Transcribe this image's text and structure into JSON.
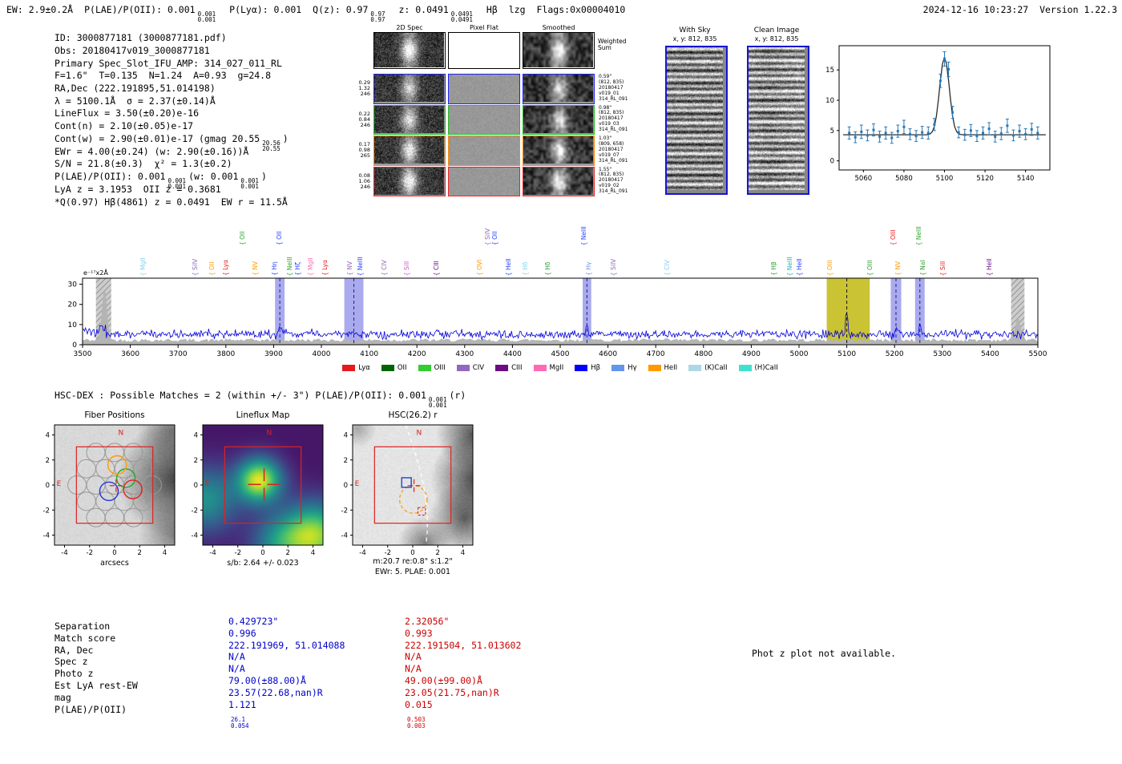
{
  "header": {
    "ew": "EW: 2.9±0.2Å",
    "plae_label": "P(LAE)/P(OII): 0.001",
    "plae_sup": "0.001",
    "plae_sub": "0.001",
    "plya": "P(Lyα): 0.001",
    "qz_label": "Q(z): 0.97",
    "qz_sup": "0.97",
    "qz_sub": "0.97",
    "z_label": "z: 0.0491",
    "z_sup": "0.0491",
    "z_sub": "0.0491",
    "line_id": "Hβ",
    "cls": "lzg",
    "flags": "Flags:0x00004010",
    "datetime": "2024-12-16 10:23:27",
    "version": "Version 1.22.3"
  },
  "info": {
    "l1": "ID: 3000877181 (3000877181.pdf)",
    "l2": "Obs: 20180417v019_3000877181",
    "l3": "Primary Spec_Slot_IFU_AMP: 314_027_011_RL",
    "l4": "F=1.6\"  T=0.135  N=1.24  A=0.93  g=24.8",
    "l5": "RA,Dec (222.191895,51.014198)",
    "l6": "λ = 5100.1Å  σ = 2.37(±0.14)Å",
    "l7": "LineFlux = 3.50(±0.20)e-16",
    "l8": "Cont(n) = 2.10(±0.05)e-17",
    "l9": {
      "pre": "Cont(w) = 2.90(±0.01)e-17 (gmag 20.55",
      "sup": "20.56",
      "sub": "20.55",
      "post": ")"
    },
    "l10": "EWr = 4.00(±0.24) (w: 2.90(±0.16))Å",
    "l11": "S/N = 21.8(±0.3)  χ² = 1.3(±0.2)",
    "l12": {
      "pre": "P(LAE)/P(OII): 0.001",
      "sup1": "0.001",
      "sub1": "0.001",
      "mid": "(w: 0.001",
      "sup2": "0.001",
      "sub2": "0.001",
      "post": ")"
    },
    "l13": "LyA z = 3.1953  OII z = 0.3681",
    "l14": "*Q(0.97) Hβ(4861) z = 0.0491  EW r = 11.5Å"
  },
  "spec2d": {
    "col_titles": [
      "2D Spec",
      "Pixel Flat",
      "Smoothed"
    ],
    "weighted": [
      "Weighted",
      "Sum"
    ],
    "rows": [
      {
        "color": "#2222ee",
        "left": [
          "0.29",
          "1.32",
          "246"
        ],
        "right": [
          "0.59\"",
          "(812, 835)",
          "20180417",
          "v019_01",
          "314_RL_091"
        ]
      },
      {
        "color": "#22bb22",
        "left": [
          "0.22",
          "0.84",
          "246"
        ],
        "right": [
          "0.98\"",
          "(812, 835)",
          "20180417",
          "v019_03",
          "314_RL_091"
        ]
      },
      {
        "color": "#ff8800",
        "left": [
          "0.17",
          "0.98",
          "265"
        ],
        "right": [
          "1.03\"",
          "(809, 658)",
          "20180417",
          "v019_07",
          "314_RL_091"
        ]
      },
      {
        "color": "#ee2222",
        "left": [
          "0.08",
          "1.06",
          "246"
        ],
        "right": [
          "1.55\"",
          "(812, 835)",
          "20180417",
          "v019_02",
          "314_RL_091"
        ]
      }
    ]
  },
  "sky_panels": [
    {
      "title": "With Sky",
      "subtitle": "x, y: 812, 835"
    },
    {
      "title": "Clean Image",
      "subtitle": "x, y: 812, 835"
    }
  ],
  "hscdex": {
    "pre": "HSC-DEX : Possible Matches = 2 (within +/- 3\")  P(LAE)/P(OII): 0.001",
    "sup": "0.001",
    "sub": "0.001",
    "post": "(r)"
  },
  "cutouts": [
    {
      "title": "Fiber Positions",
      "xlabel": "arcsecs"
    },
    {
      "title": "Lineflux Map",
      "xlabel": "s/b: 2.64 +/- 0.023"
    },
    {
      "title": "HSC(26.2) r",
      "xlabel": "m:20.7 re:0.8\" s:1.2\"",
      "caption2": "EWr: 5. PLAE: 0.001"
    }
  ],
  "cutout_ticks": [
    -4,
    -2,
    0,
    2,
    4
  ],
  "match_table": {
    "row_labels": [
      "Separation",
      "Match score",
      "RA, Dec",
      "Spec z",
      "Photo z",
      "Est LyA rest-EW",
      "mag",
      "P(LAE)/P(OII)"
    ],
    "col1": {
      "color": "#0000cc",
      "values": [
        "0.429723\"",
        "0.996",
        "222.191969, 51.014088",
        "N/A",
        "N/A",
        "79.00(±88.00)Å",
        "23.57(22.68,nan)R"
      ],
      "plae_val": "1.121",
      "plae_sup": "26.1",
      "plae_sub": "0.054"
    },
    "col2": {
      "color": "#cc0000",
      "values": [
        "2.32056\"",
        "0.993",
        "222.191504, 51.013602",
        "N/A",
        "N/A",
        "49.00(±99.00)Å",
        "23.05(21.75,nan)R"
      ],
      "plae_val": "0.015",
      "plae_sup": "0.503",
      "plae_sub": "0.003"
    }
  },
  "photz_note": "Phot z plot not available.",
  "chart_data": [
    {
      "id": "line_fit_inset",
      "type": "scatter",
      "label": "e⁻¹⁷x2Å",
      "xlim": [
        5048,
        5152
      ],
      "ylim": [
        -1.5,
        19
      ],
      "x_ticks": [
        5060,
        5080,
        5100,
        5120,
        5140
      ],
      "y_ticks": [
        0,
        5,
        10,
        15
      ],
      "fit": {
        "continuum": 4.3,
        "center": 5100,
        "sigma": 2.37,
        "amplitude": 12.8
      },
      "point_color": "#2878b5",
      "fit_color": "#2b2b2b",
      "points": [
        [
          5053,
          4.6,
          1.0
        ],
        [
          5056,
          3.9,
          0.9
        ],
        [
          5059,
          4.8,
          1.1
        ],
        [
          5062,
          4.2,
          0.9
        ],
        [
          5065,
          5.1,
          1.0
        ],
        [
          5068,
          4.0,
          0.9
        ],
        [
          5071,
          4.6,
          1.0
        ],
        [
          5074,
          3.8,
          0.9
        ],
        [
          5077,
          4.9,
          1.0
        ],
        [
          5080,
          5.6,
          1.1
        ],
        [
          5083,
          4.4,
          0.9
        ],
        [
          5086,
          4.1,
          0.9
        ],
        [
          5089,
          4.7,
          1.0
        ],
        [
          5092,
          4.6,
          1.0
        ],
        [
          5095,
          6.0,
          1.0
        ],
        [
          5098,
          13.2,
          1.1
        ],
        [
          5100,
          16.8,
          1.2
        ],
        [
          5102,
          15.1,
          1.2
        ],
        [
          5104,
          8.0,
          1.0
        ],
        [
          5107,
          4.7,
          0.9
        ],
        [
          5110,
          4.3,
          0.9
        ],
        [
          5113,
          5.0,
          1.0
        ],
        [
          5116,
          4.1,
          0.9
        ],
        [
          5119,
          4.6,
          1.0
        ],
        [
          5122,
          5.3,
          1.0
        ],
        [
          5125,
          4.0,
          0.9
        ],
        [
          5128,
          4.5,
          1.0
        ],
        [
          5131,
          5.8,
          1.1
        ],
        [
          5134,
          4.2,
          0.9
        ],
        [
          5137,
          4.9,
          1.0
        ],
        [
          5140,
          4.4,
          0.9
        ],
        [
          5143,
          5.2,
          1.0
        ],
        [
          5146,
          4.6,
          1.0
        ]
      ]
    },
    {
      "id": "full_spectrum",
      "type": "line",
      "label": "e⁻¹⁷x2Å",
      "xlim": [
        3500,
        5500
      ],
      "ylim": [
        0,
        33
      ],
      "x_ticks": [
        3500,
        3600,
        3700,
        3800,
        3900,
        4000,
        4100,
        4200,
        4300,
        4400,
        4500,
        4600,
        4700,
        4800,
        4900,
        5000,
        5100,
        5200,
        5300,
        5400,
        5500
      ],
      "y_ticks": [
        0,
        10,
        20,
        30
      ],
      "line_color": "#0000dd",
      "continuum": 5.3,
      "noise_sigma": 1.1,
      "peaks": [
        {
          "center": 5100,
          "sigma": 2.4,
          "amp": 11.5
        },
        {
          "center": 3913,
          "sigma": 2.5,
          "amp": 4
        },
        {
          "center": 4556,
          "sigma": 2.5,
          "amp": 2.5
        },
        {
          "center": 5203,
          "sigma": 2.5,
          "amp": 3
        },
        {
          "center": 5253,
          "sigma": 2.5,
          "amp": 3.5
        }
      ],
      "gray_noise": {
        "base": 2.3,
        "spikes": [
          {
            "center": 3546,
            "amp": 26,
            "sigma": 5
          },
          {
            "center": 5458,
            "amp": 11,
            "sigma": 6
          }
        ]
      },
      "bands_blue": [
        [
          3903,
          3923
        ],
        [
          4048,
          4088
        ],
        [
          4547,
          4565
        ],
        [
          5192,
          5214
        ],
        [
          5243,
          5263
        ]
      ],
      "band_olive": [
        5058,
        5148
      ],
      "bands_gray": [
        [
          3528,
          3560
        ],
        [
          5444,
          5472
        ]
      ],
      "dashed_blue": [
        3913,
        4068,
        4556,
        5203,
        5253
      ],
      "dashed_black": [
        5100
      ],
      "emission_labels": [
        {
          "label": "MgII",
          "wave": 3628,
          "color": "#87ceeb"
        },
        {
          "label": "SiIV",
          "wave": 3736,
          "color": "#9467bd"
        },
        {
          "label": "OII",
          "wave": 3772,
          "color": "#ff9900"
        },
        {
          "label": "Lyα",
          "wave": 3800,
          "color": "#e41a1c"
        },
        {
          "label": "OII",
          "wave": 3836,
          "color": "#2ca02c",
          "tall": true
        },
        {
          "label": "NV",
          "wave": 3863,
          "color": "#ff9900"
        },
        {
          "label": "Hη",
          "wave": 3902,
          "color": "#1f3fff"
        },
        {
          "label": "OII",
          "wave": 3913,
          "color": "#1f3fff",
          "tall": true
        },
        {
          "label": "NeIII",
          "wave": 3935,
          "color": "#2ca02c"
        },
        {
          "label": "Hζ",
          "wave": 3952,
          "color": "#1f3fff"
        },
        {
          "label": "MgII",
          "wave": 3978,
          "color": "#ff69b4"
        },
        {
          "label": "Lyα",
          "wave": 4008,
          "color": "#e41a1c"
        },
        {
          "label": "NV",
          "wave": 4060,
          "color": "#9467bd"
        },
        {
          "label": "NeIII",
          "wave": 4083,
          "color": "#1f3fff"
        },
        {
          "label": "CIV",
          "wave": 4132,
          "color": "#9467bd"
        },
        {
          "label": "SiII",
          "wave": 4180,
          "color": "#cc55cc"
        },
        {
          "label": "CIII",
          "wave": 4242,
          "color": "#6a0d83"
        },
        {
          "label": "OVI",
          "wave": 4332,
          "color": "#ff9900"
        },
        {
          "label": "SiIV",
          "wave": 4349,
          "color": "#9467bd",
          "tall": true
        },
        {
          "label": "OII",
          "wave": 4364,
          "color": "#1f3fff",
          "tall": true
        },
        {
          "label": "HeII",
          "wave": 4393,
          "color": "#1f3fff"
        },
        {
          "label": "Hδ",
          "wave": 4428,
          "color": "#87ceeb"
        },
        {
          "label": "Hδ",
          "wave": 4474,
          "color": "#2ca02c"
        },
        {
          "label": "NeIII",
          "wave": 4551,
          "color": "#1f3fff",
          "tall": true
        },
        {
          "label": "Hγ",
          "wave": 4560,
          "color": "#6495ed"
        },
        {
          "label": "SiIV",
          "wave": 4612,
          "color": "#9467bd"
        },
        {
          "label": "CIV",
          "wave": 4724,
          "color": "#87ceeb"
        },
        {
          "label": "Hβ",
          "wave": 4948,
          "color": "#2ca02c"
        },
        {
          "label": "NeIII",
          "wave": 4982,
          "color": "#20b2aa"
        },
        {
          "label": "HeII",
          "wave": 5002,
          "color": "#1f3fff"
        },
        {
          "label": "OIII",
          "wave": 5066,
          "color": "#ff9900"
        },
        {
          "label": "OIII",
          "wave": 5150,
          "color": "#2ca02c"
        },
        {
          "label": "OIII",
          "wave": 5198,
          "color": "#e41a1c",
          "tall": true
        },
        {
          "label": "NV",
          "wave": 5208,
          "color": "#ff9900"
        },
        {
          "label": "NeIII",
          "wave": 5252,
          "color": "#2ca02c",
          "tall": true
        },
        {
          "label": "NaI",
          "wave": 5260,
          "color": "#2ca02c"
        },
        {
          "label": "SiII",
          "wave": 5302,
          "color": "#e41a1c"
        },
        {
          "label": "HeII",
          "wave": 5400,
          "color": "#6a0d83"
        }
      ],
      "legend": [
        {
          "label": "Lyα",
          "color": "#e41a1c"
        },
        {
          "label": "OII",
          "color": "#006400"
        },
        {
          "label": "OIII",
          "color": "#32cd32"
        },
        {
          "label": "CIV",
          "color": "#9467bd"
        },
        {
          "label": "CIII",
          "color": "#6a0d83"
        },
        {
          "label": "MgII",
          "color": "#ff69b4"
        },
        {
          "label": "Hβ",
          "color": "#0000ff"
        },
        {
          "label": "Hγ",
          "color": "#6495ed"
        },
        {
          "label": "HeII",
          "color": "#ff9900"
        },
        {
          "label": "(K)CaII",
          "color": "#add8e6"
        },
        {
          "label": "(H)CaII",
          "color": "#40e0d0"
        }
      ]
    }
  ]
}
